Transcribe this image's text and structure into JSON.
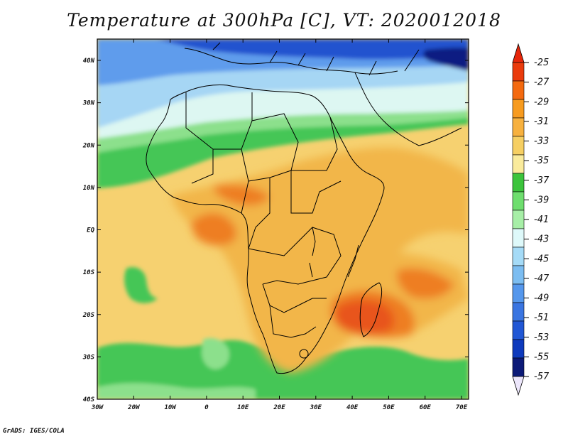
{
  "title": "Temperature at 300hPa [C], VT: 2020012018",
  "credit": "GrADS: IGES/COLA",
  "lat_labels": [
    "40N",
    "30N",
    "20N",
    "10N",
    "EQ",
    "10S",
    "20S",
    "30S",
    "40S"
  ],
  "lon_labels": [
    "30W",
    "20W",
    "10W",
    "0",
    "10E",
    "20E",
    "30E",
    "40E",
    "50E",
    "60E",
    "70E"
  ],
  "colorbar": {
    "labels": [
      "-25",
      "-27",
      "-29",
      "-31",
      "-33",
      "-35",
      "-37",
      "-39",
      "-41",
      "-43",
      "-45",
      "-47",
      "-49",
      "-51",
      "-53",
      "-55",
      "-57"
    ],
    "colors": [
      "#ea3b0c",
      "#f46a10",
      "#f79b1f",
      "#f7b13f",
      "#f6cf63",
      "#faeb9c",
      "#3cc43c",
      "#6ede6e",
      "#a7efa7",
      "#def9fa",
      "#a5dbf7",
      "#7cbdf1",
      "#5597ec",
      "#3a75e1",
      "#2157d5",
      "#0e3abd",
      "#0c1a78"
    ],
    "top_arrow_color": "#e6260a",
    "bottom_arrow_color": "#ece6fb"
  },
  "palette": {
    "ocean_warm": "#f6d170",
    "land_warm": "#f2b64a",
    "hot": "#ee7e20",
    "very_hot": "#e8541a",
    "cold_green": "#44c656",
    "light_green": "#8ce08c",
    "pale_cyan": "#ddf7f2",
    "light_blue": "#a6d6f4",
    "mid_blue": "#5f9cec",
    "deep_blue": "#2252cf",
    "navy": "#0d1f82",
    "outline": "#000000"
  }
}
